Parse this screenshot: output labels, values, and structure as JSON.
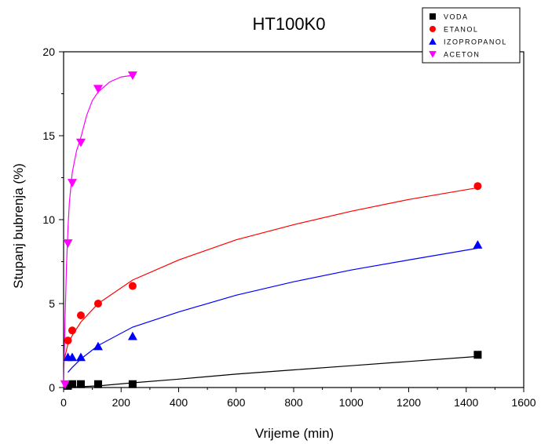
{
  "chart_data": {
    "type": "scatter",
    "title": "HT100K0",
    "xlabel": "Vrijeme (min)",
    "ylabel": "Stupanj bubrenja (%)",
    "xlim": [
      0,
      1600
    ],
    "ylim": [
      0,
      20
    ],
    "xticks": [
      0,
      200,
      400,
      600,
      800,
      1000,
      1200,
      1400,
      1600
    ],
    "yticks": [
      0,
      5,
      10,
      15,
      20
    ],
    "legend_position": "top-right",
    "series": [
      {
        "name": "VODA",
        "color": "#000000",
        "marker": "square",
        "x": [
          15,
          30,
          60,
          120,
          240,
          1440
        ],
        "y": [
          0.1,
          0.2,
          0.2,
          0.2,
          0.2,
          1.95
        ],
        "fit": {
          "x": [
            0,
            120,
            240,
            400,
            600,
            800,
            1000,
            1200,
            1440
          ],
          "y": [
            0,
            0.1,
            0.28,
            0.5,
            0.8,
            1.05,
            1.3,
            1.55,
            1.85
          ]
        }
      },
      {
        "name": "ETANOL",
        "color": "#ff0000",
        "marker": "circle",
        "x": [
          15,
          30,
          60,
          120,
          240,
          1440
        ],
        "y": [
          2.8,
          3.4,
          4.3,
          5.0,
          6.05,
          12.0
        ],
        "fit": {
          "x": [
            0,
            15,
            30,
            60,
            120,
            240,
            400,
            600,
            800,
            1000,
            1200,
            1440
          ],
          "y": [
            1.5,
            2.6,
            3.1,
            3.9,
            5.0,
            6.4,
            7.6,
            8.8,
            9.7,
            10.5,
            11.2,
            11.9
          ]
        }
      },
      {
        "name": "IZOPROPANOL",
        "color": "#0000ff",
        "marker": "triangle-up",
        "x": [
          15,
          30,
          60,
          120,
          240,
          1440
        ],
        "y": [
          1.8,
          1.8,
          1.8,
          2.45,
          3.05,
          8.5
        ],
        "fit": {
          "x": [
            15,
            30,
            60,
            120,
            240,
            400,
            600,
            800,
            1000,
            1200,
            1440
          ],
          "y": [
            0.9,
            1.2,
            1.7,
            2.5,
            3.6,
            4.5,
            5.5,
            6.3,
            7.0,
            7.6,
            8.3
          ]
        }
      },
      {
        "name": "ACETON",
        "color": "#ff00ff",
        "marker": "triangle-down",
        "x": [
          5,
          15,
          30,
          60,
          120,
          240
        ],
        "y": [
          0.2,
          8.6,
          12.2,
          14.6,
          17.8,
          18.6
        ],
        "fit": {
          "x": [
            0,
            5,
            10,
            15,
            20,
            30,
            45,
            60,
            80,
            100,
            120,
            160,
            200,
            240
          ],
          "y": [
            0,
            4.0,
            7.3,
            9.4,
            11.0,
            12.8,
            14.1,
            14.9,
            16.2,
            17.1,
            17.6,
            18.2,
            18.5,
            18.6
          ]
        }
      }
    ]
  }
}
